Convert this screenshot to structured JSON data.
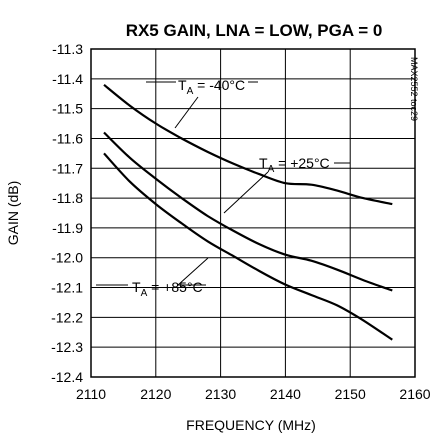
{
  "chart_data": {
    "type": "line",
    "title": "RX5 GAIN, LNA = LOW, PGA = 0",
    "xlabel": "FREQUENCY (MHz)",
    "ylabel": "GAIN (dB)",
    "xlim": [
      2110,
      2160
    ],
    "ylim": [
      -12.4,
      -11.3
    ],
    "x_ticks": [
      "2110",
      "2120",
      "2130",
      "2140",
      "2150",
      "2160"
    ],
    "y_ticks": [
      "-11.3",
      "-11.4",
      "-11.5",
      "-11.6",
      "-11.7",
      "-11.8",
      "-11.9",
      "-12.0",
      "-12.1",
      "-12.2",
      "-12.3",
      "-12.4"
    ],
    "grid": true,
    "side_label": "MAX2552 toc29",
    "series": [
      {
        "name": "TA = -40°C",
        "annotation": {
          "main": "T",
          "sub": "A",
          "rest": " = -40°C"
        },
        "x": [
          2112,
          2116,
          2120,
          2124,
          2128,
          2132,
          2136,
          2140,
          2144,
          2148,
          2152,
          2156.5
        ],
        "y": [
          -11.42,
          -11.49,
          -11.55,
          -11.6,
          -11.645,
          -11.685,
          -11.72,
          -11.75,
          -11.755,
          -11.775,
          -11.8,
          -11.82
        ]
      },
      {
        "name": "TA = +25°C",
        "annotation": {
          "main": "T",
          "sub": "A",
          "rest": " = +25°C"
        },
        "x": [
          2112,
          2116,
          2120,
          2124,
          2128,
          2132,
          2136,
          2140,
          2144,
          2148,
          2152,
          2156.5
        ],
        "y": [
          -11.58,
          -11.665,
          -11.735,
          -11.8,
          -11.86,
          -11.91,
          -11.955,
          -11.99,
          -12.01,
          -12.04,
          -12.075,
          -12.11
        ]
      },
      {
        "name": "TA = +85°C",
        "annotation": {
          "main": "T",
          "sub": "A",
          "rest": " = +85°C"
        },
        "x": [
          2112,
          2116,
          2120,
          2124,
          2128,
          2132,
          2136,
          2140,
          2144,
          2148,
          2152,
          2156.5
        ],
        "y": [
          -11.65,
          -11.745,
          -11.82,
          -11.885,
          -11.945,
          -11.995,
          -12.045,
          -12.09,
          -12.125,
          -12.16,
          -12.21,
          -12.275
        ]
      }
    ]
  }
}
